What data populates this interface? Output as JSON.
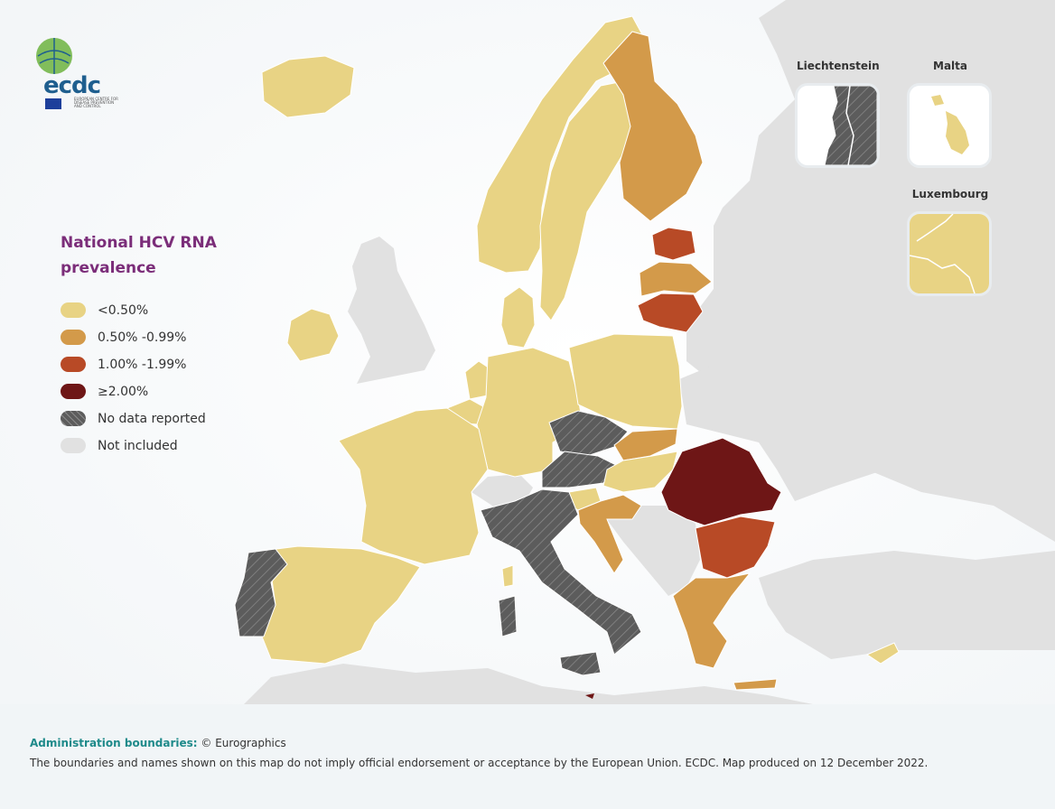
{
  "logo": {
    "text": "ecdc",
    "subtitle": "EUROPEAN CENTRE FOR DISEASE PREVENTION AND CONTROL"
  },
  "legend": {
    "title": "National HCV RNA prevalence",
    "items": [
      {
        "label": "<0.50%",
        "color": "#e8d384"
      },
      {
        "label": "0.50% -0.99%",
        "color": "#d39a4a"
      },
      {
        "label": "1.00% -1.99%",
        "color": "#b84a26"
      },
      {
        "label": "≥2.00%",
        "color": "#6e1616"
      },
      {
        "label": "No data reported",
        "color": "#5c5c5c"
      },
      {
        "label": "Not included",
        "color": "#e1e1e1"
      }
    ]
  },
  "insets": {
    "liechtenstein": {
      "label": "Liechtenstein",
      "category": "No data reported"
    },
    "malta": {
      "label": "Malta",
      "category": "<0.50%"
    },
    "luxembourg": {
      "label": "Luxembourg",
      "category": "<0.50%"
    }
  },
  "countries": {
    "iceland": "<0.50%",
    "norway": "<0.50%",
    "sweden": "<0.50%",
    "finland": "0.50% -0.99%",
    "estonia": "1.00% -1.99%",
    "latvia": "0.50% -0.99%",
    "lithuania": "1.00% -1.99%",
    "ireland": "<0.50%",
    "united_kingdom": "Not included",
    "denmark": "<0.50%",
    "netherlands": "<0.50%",
    "belgium": "<0.50%",
    "germany": "<0.50%",
    "poland": "<0.50%",
    "czechia": "No data reported",
    "slovakia": "0.50% -0.99%",
    "austria": "No data reported",
    "hungary": "<0.50%",
    "switzerland": "Not included",
    "france": "<0.50%",
    "spain": "<0.50%",
    "portugal": "No data reported",
    "italy": "No data reported",
    "slovenia": "<0.50%",
    "croatia": "0.50% -0.99%",
    "romania": "≥2.00%",
    "bulgaria": "1.00% -1.99%",
    "greece": "0.50% -0.99%",
    "cyprus": "<0.50%"
  },
  "footer": {
    "label": "Administration boundaries:",
    "source": "© Eurographics",
    "disclaimer": "The boundaries and names shown on this map do not imply official endorsement or acceptance by the European Union. ECDC. Map produced on 12 December 2022."
  }
}
